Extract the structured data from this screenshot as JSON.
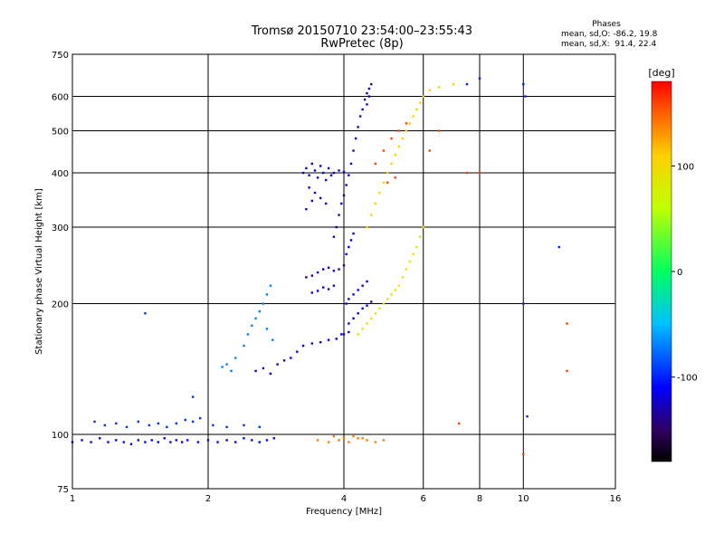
{
  "title_line1": "Tromsø 20150710 23:54:00–23:55:43",
  "title_line2": "RwPretec (8p)",
  "stats": {
    "heading": "Phases",
    "line1": "mean, sd,O: -86.2, 19.8",
    "line2": "mean, sd,X:  91.4, 22.4"
  },
  "colorbar": {
    "label": "[deg]",
    "ticks": [
      {
        "value": 100,
        "label": "100"
      },
      {
        "value": 0,
        "label": "0"
      },
      {
        "value": -100,
        "label": "-100"
      }
    ],
    "range": [
      -180,
      180
    ]
  },
  "chart_data": {
    "type": "scatter",
    "title": "Tromsø 20150710 23:54:00–23:55:43",
    "subtitle": "RwPretec (8p)",
    "xlabel": "Frequency [MHz]",
    "ylabel": "Stationary phase Virtual Height [km]",
    "xscale": "log",
    "yscale": "log",
    "xlim": [
      1,
      16
    ],
    "ylim": [
      75,
      750
    ],
    "xticks": [
      1,
      2,
      4,
      6,
      8,
      10,
      16
    ],
    "yticks": [
      75,
      100,
      200,
      300,
      400,
      500,
      600,
      750
    ],
    "grid": true,
    "color_variable": "Phase [deg]",
    "series": [
      {
        "color_phase": -110,
        "points": [
          [
            1.0,
            96
          ],
          [
            1.05,
            97
          ],
          [
            1.1,
            96
          ],
          [
            1.15,
            98
          ],
          [
            1.2,
            96
          ],
          [
            1.25,
            97
          ],
          [
            1.3,
            96
          ],
          [
            1.35,
            95
          ],
          [
            1.4,
            97
          ],
          [
            1.45,
            96
          ],
          [
            1.5,
            97
          ],
          [
            1.55,
            96
          ],
          [
            1.6,
            98
          ],
          [
            1.65,
            96
          ],
          [
            1.7,
            97
          ],
          [
            1.75,
            96
          ],
          [
            1.8,
            97
          ],
          [
            1.9,
            96
          ],
          [
            2.0,
            97
          ],
          [
            2.1,
            96
          ],
          [
            2.2,
            97
          ],
          [
            2.3,
            96
          ],
          [
            2.4,
            98
          ],
          [
            2.5,
            97
          ],
          [
            2.6,
            96
          ],
          [
            2.7,
            97
          ],
          [
            2.8,
            98
          ]
        ]
      },
      {
        "color_phase": -95,
        "points": [
          [
            1.12,
            107
          ],
          [
            1.18,
            105
          ],
          [
            1.25,
            106
          ],
          [
            1.32,
            104
          ],
          [
            1.4,
            107
          ],
          [
            1.48,
            105
          ],
          [
            1.55,
            106
          ],
          [
            1.62,
            104
          ],
          [
            1.7,
            106
          ],
          [
            1.78,
            108
          ],
          [
            1.85,
            107
          ],
          [
            1.92,
            109
          ],
          [
            2.05,
            105
          ],
          [
            2.2,
            104
          ],
          [
            2.4,
            105
          ],
          [
            2.6,
            104
          ],
          [
            1.45,
            190
          ],
          [
            1.85,
            122
          ]
        ]
      },
      {
        "color_phase": -70,
        "points": [
          [
            2.15,
            143
          ],
          [
            2.2,
            145
          ],
          [
            2.25,
            140
          ],
          [
            2.3,
            150
          ],
          [
            2.4,
            160
          ],
          [
            2.45,
            170
          ],
          [
            2.5,
            178
          ],
          [
            2.55,
            185
          ],
          [
            2.6,
            192
          ],
          [
            2.65,
            200
          ],
          [
            2.7,
            210
          ],
          [
            2.75,
            220
          ],
          [
            2.7,
            175
          ],
          [
            2.78,
            165
          ]
        ]
      },
      {
        "color_phase": -120,
        "points": [
          [
            2.55,
            140
          ],
          [
            2.65,
            142
          ],
          [
            2.75,
            138
          ],
          [
            2.85,
            145
          ],
          [
            2.95,
            148
          ],
          [
            3.05,
            150
          ],
          [
            3.15,
            155
          ],
          [
            3.25,
            160
          ],
          [
            3.4,
            162
          ],
          [
            3.55,
            163
          ],
          [
            3.7,
            165
          ],
          [
            3.85,
            166
          ],
          [
            3.95,
            170
          ],
          [
            4.0,
            170
          ],
          [
            4.1,
            172
          ]
        ]
      },
      {
        "color_phase": -125,
        "points": [
          [
            3.3,
            230
          ],
          [
            3.4,
            232
          ],
          [
            3.5,
            236
          ],
          [
            3.6,
            240
          ],
          [
            3.7,
            242
          ],
          [
            3.8,
            238
          ],
          [
            3.9,
            240
          ],
          [
            4.0,
            245
          ],
          [
            3.4,
            212
          ],
          [
            3.5,
            214
          ],
          [
            3.6,
            218
          ],
          [
            3.7,
            216
          ],
          [
            3.8,
            220
          ]
        ]
      },
      {
        "color_phase": -130,
        "points": [
          [
            3.8,
            285
          ],
          [
            3.85,
            300
          ],
          [
            3.9,
            320
          ],
          [
            3.95,
            340
          ],
          [
            4.0,
            355
          ],
          [
            4.05,
            375
          ],
          [
            4.1,
            395
          ],
          [
            4.15,
            420
          ],
          [
            4.2,
            450
          ],
          [
            4.25,
            480
          ],
          [
            4.3,
            510
          ],
          [
            4.35,
            540
          ],
          [
            4.4,
            560
          ],
          [
            4.45,
            590
          ],
          [
            4.5,
            610
          ],
          [
            4.55,
            625
          ],
          [
            4.6,
            640
          ],
          [
            4.5,
            575
          ],
          [
            4.55,
            600
          ]
        ]
      },
      {
        "color_phase": -120,
        "points": [
          [
            3.25,
            400
          ],
          [
            3.3,
            410
          ],
          [
            3.35,
            395
          ],
          [
            3.4,
            420
          ],
          [
            3.45,
            405
          ],
          [
            3.5,
            390
          ],
          [
            3.55,
            415
          ],
          [
            3.6,
            400
          ],
          [
            3.65,
            385
          ],
          [
            3.7,
            410
          ],
          [
            3.75,
            395
          ],
          [
            3.8,
            400
          ],
          [
            3.9,
            405
          ],
          [
            4.0,
            402
          ],
          [
            3.35,
            370
          ],
          [
            3.45,
            360
          ],
          [
            3.55,
            350
          ],
          [
            3.65,
            340
          ],
          [
            3.3,
            330
          ],
          [
            3.4,
            345
          ]
        ]
      },
      {
        "color_phase": -115,
        "points": [
          [
            4.05,
            200
          ],
          [
            4.1,
            205
          ],
          [
            4.2,
            210
          ],
          [
            4.3,
            215
          ],
          [
            4.4,
            220
          ],
          [
            4.5,
            225
          ],
          [
            4.1,
            180
          ],
          [
            4.2,
            185
          ],
          [
            4.3,
            190
          ],
          [
            4.4,
            195
          ],
          [
            4.5,
            198
          ],
          [
            4.6,
            202
          ],
          [
            4.05,
            260
          ],
          [
            4.1,
            270
          ],
          [
            4.15,
            280
          ],
          [
            4.2,
            290
          ]
        ]
      },
      {
        "color_phase": 90,
        "points": [
          [
            4.3,
            170
          ],
          [
            4.4,
            175
          ],
          [
            4.5,
            180
          ],
          [
            4.6,
            185
          ],
          [
            4.7,
            190
          ],
          [
            4.8,
            195
          ],
          [
            4.9,
            200
          ],
          [
            5.0,
            205
          ],
          [
            5.1,
            210
          ],
          [
            5.2,
            215
          ],
          [
            5.3,
            220
          ],
          [
            5.4,
            230
          ],
          [
            5.5,
            240
          ],
          [
            5.6,
            250
          ],
          [
            5.7,
            260
          ],
          [
            5.8,
            270
          ],
          [
            5.9,
            285
          ],
          [
            6.0,
            300
          ]
        ]
      },
      {
        "color_phase": 110,
        "points": [
          [
            4.5,
            300
          ],
          [
            4.6,
            320
          ],
          [
            4.7,
            340
          ],
          [
            4.8,
            360
          ],
          [
            4.9,
            380
          ],
          [
            5.0,
            400
          ],
          [
            5.1,
            420
          ],
          [
            5.2,
            440
          ],
          [
            5.3,
            460
          ],
          [
            5.4,
            480
          ],
          [
            5.5,
            500
          ],
          [
            5.6,
            520
          ],
          [
            5.7,
            540
          ],
          [
            5.8,
            560
          ],
          [
            5.9,
            580
          ],
          [
            6.0,
            600
          ],
          [
            6.2,
            620
          ],
          [
            6.5,
            630
          ],
          [
            7.0,
            640
          ]
        ]
      },
      {
        "color_phase": 140,
        "points": [
          [
            3.5,
            97
          ],
          [
            3.7,
            96
          ],
          [
            3.9,
            97
          ],
          [
            4.1,
            96
          ],
          [
            4.3,
            98
          ],
          [
            4.5,
            97
          ],
          [
            4.7,
            96
          ],
          [
            4.9,
            97
          ],
          [
            3.8,
            99
          ],
          [
            4.0,
            98
          ],
          [
            4.2,
            99
          ],
          [
            4.4,
            98
          ]
        ]
      },
      {
        "color_phase": 160,
        "points": [
          [
            4.7,
            420
          ],
          [
            4.9,
            450
          ],
          [
            5.1,
            480
          ],
          [
            5.3,
            500
          ],
          [
            5.5,
            520
          ],
          [
            5.0,
            380
          ],
          [
            5.2,
            390
          ],
          [
            6.2,
            450
          ],
          [
            6.5,
            500
          ],
          [
            7.2,
            106
          ],
          [
            7.5,
            400
          ],
          [
            8.0,
            400
          ],
          [
            12.5,
            180
          ],
          [
            12.5,
            140
          ],
          [
            10.0,
            90
          ]
        ]
      },
      {
        "color_phase": -100,
        "points": [
          [
            10.0,
            640
          ],
          [
            10.1,
            600
          ],
          [
            10.2,
            110
          ],
          [
            12.0,
            270
          ],
          [
            10.0,
            200
          ],
          [
            8.0,
            660
          ],
          [
            7.5,
            640
          ]
        ]
      }
    ]
  }
}
